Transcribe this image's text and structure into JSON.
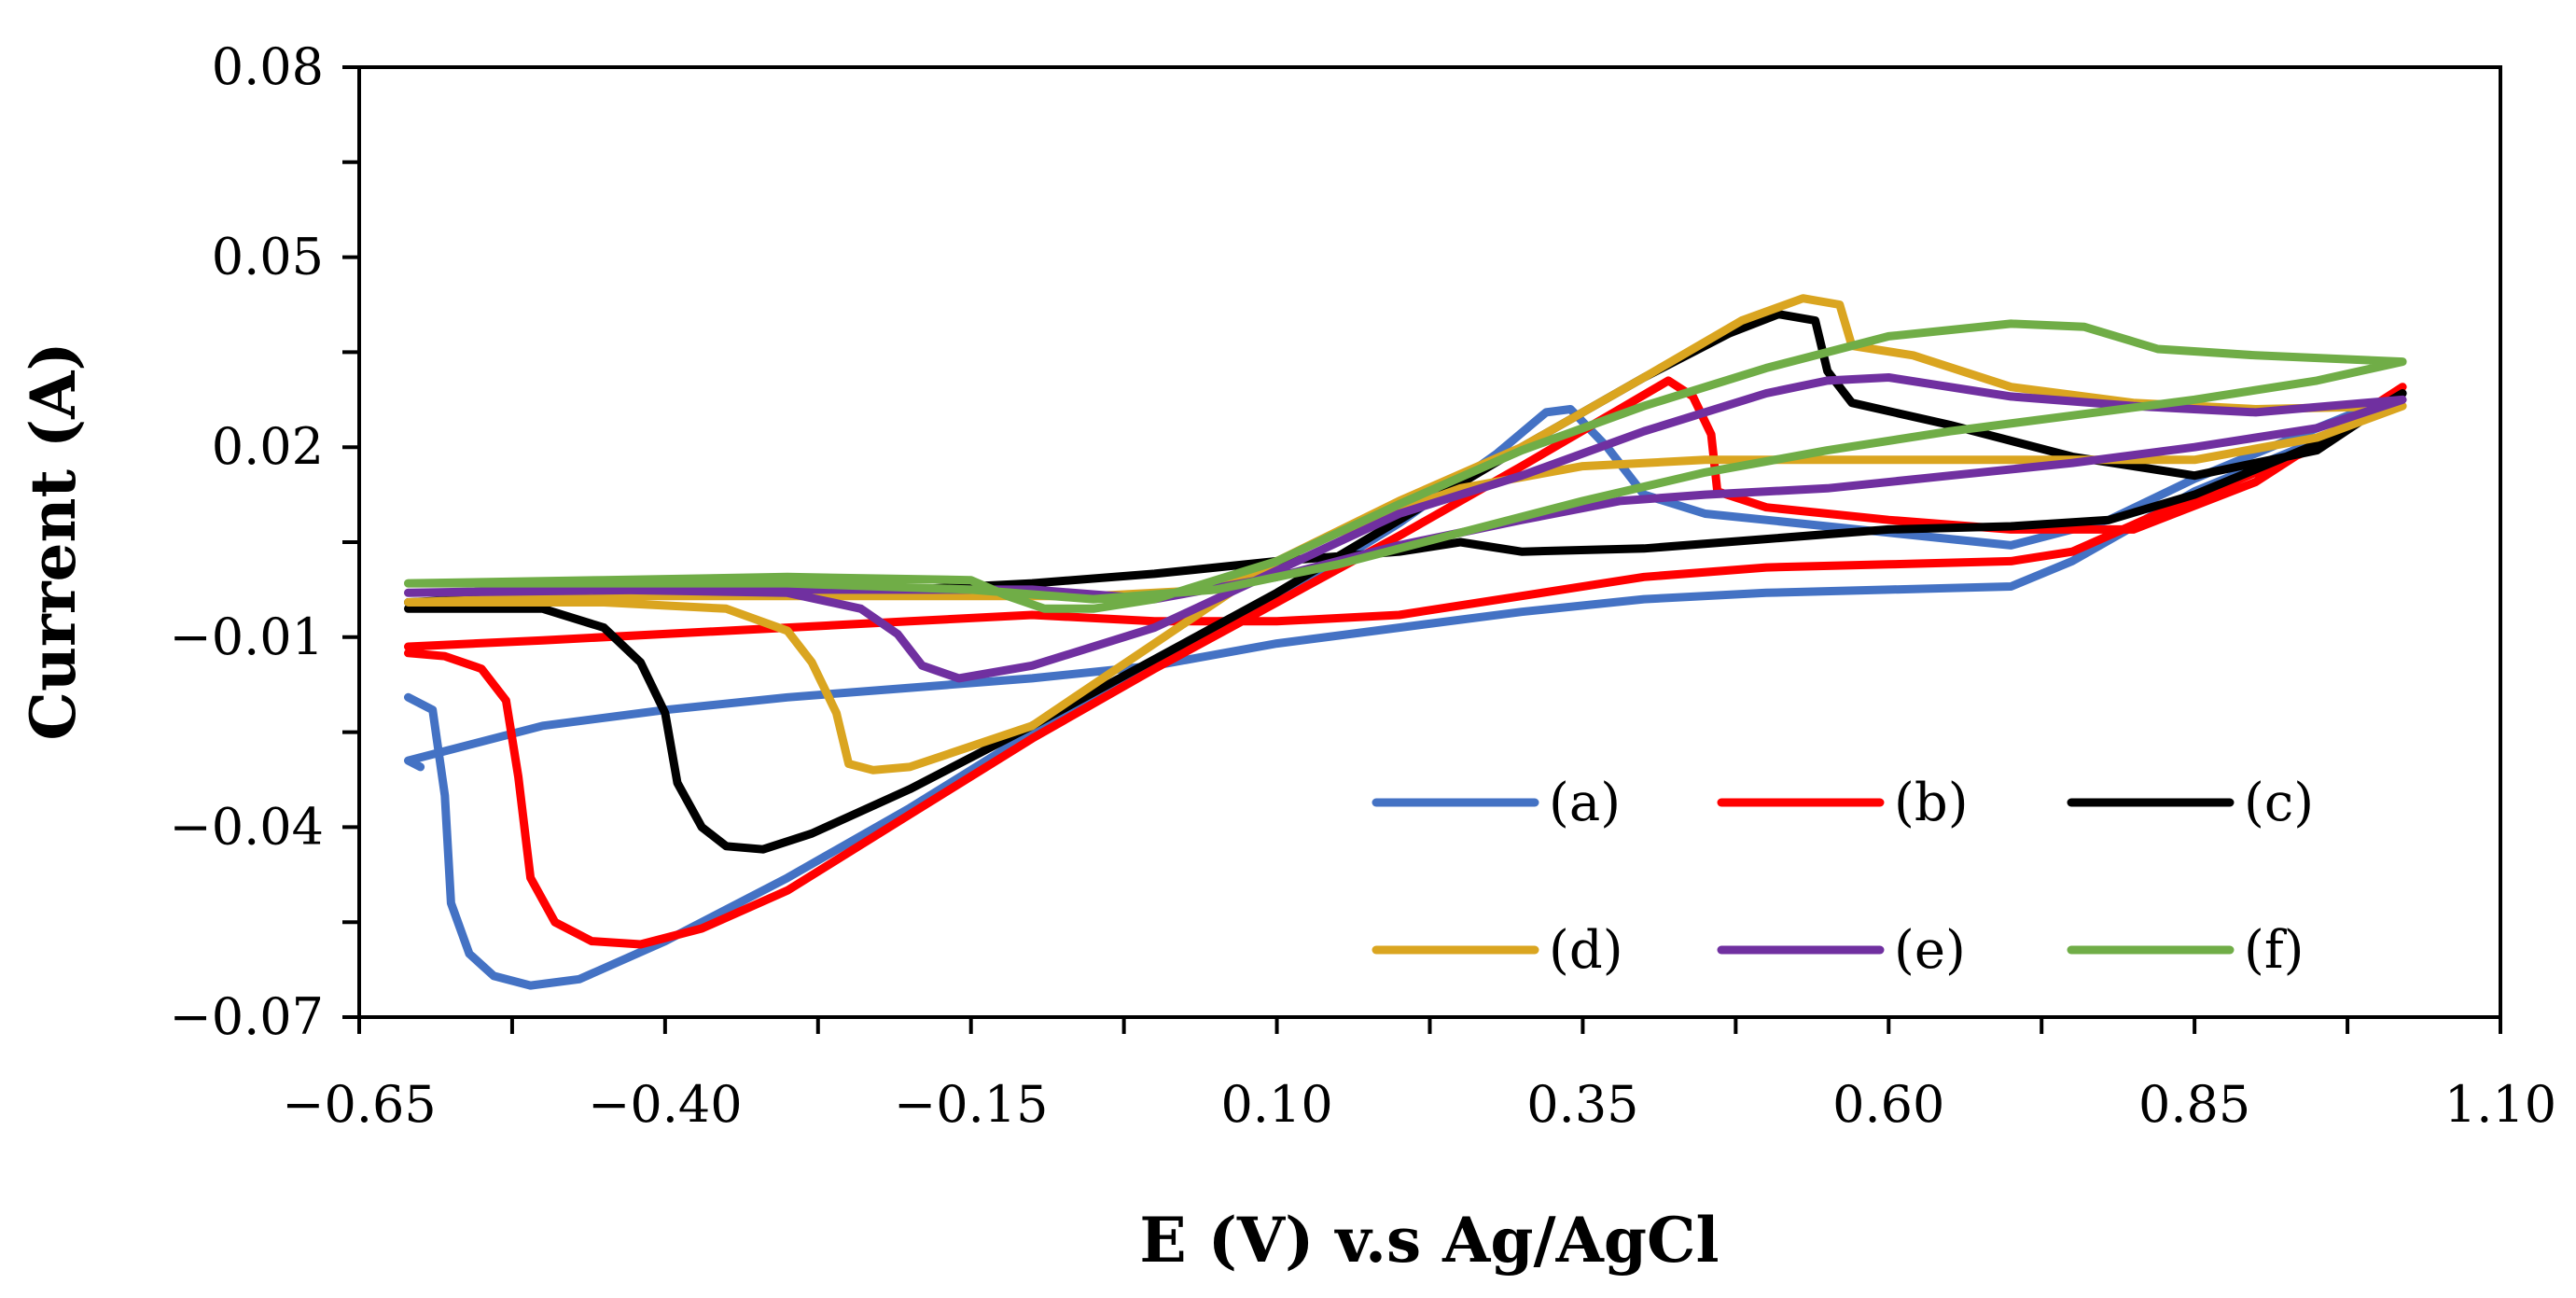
{
  "chart_data": {
    "type": "line",
    "title": "",
    "xlabel": "E (V) v.s Ag/AgCl",
    "ylabel": "Current (A)",
    "xlim": [
      -0.65,
      1.1
    ],
    "ylim": [
      -0.07,
      0.08
    ],
    "x_ticks": [
      -0.65,
      -0.4,
      -0.15,
      0.1,
      0.35,
      0.6,
      0.85,
      1.1
    ],
    "x_tick_labels": [
      "−0.65",
      "−0.40",
      "−0.15",
      "0.10",
      "0.35",
      "0.60",
      "0.85",
      "1.10"
    ],
    "y_ticks": [
      -0.07,
      -0.04,
      -0.01,
      0.02,
      0.05,
      0.08
    ],
    "y_tick_labels": [
      "−0.07",
      "−0.04",
      "−0.01",
      "0.02",
      "0.05",
      "0.08"
    ],
    "grid": false,
    "legend_position": "bottom-right",
    "series": [
      {
        "name": "(a)",
        "color": "#4472C4",
        "points": [
          [
            -0.61,
            -0.0195
          ],
          [
            -0.59,
            -0.0215
          ],
          [
            -0.58,
            -0.035
          ],
          [
            -0.575,
            -0.052
          ],
          [
            -0.56,
            -0.06
          ],
          [
            -0.54,
            -0.0635
          ],
          [
            -0.51,
            -0.065
          ],
          [
            -0.47,
            -0.064
          ],
          [
            -0.4,
            -0.058
          ],
          [
            -0.3,
            -0.048
          ],
          [
            -0.2,
            -0.037
          ],
          [
            -0.1,
            -0.025
          ],
          [
            0.0,
            -0.014
          ],
          [
            0.1,
            -0.004
          ],
          [
            0.2,
            0.008
          ],
          [
            0.28,
            0.019
          ],
          [
            0.32,
            0.0255
          ],
          [
            0.34,
            0.026
          ],
          [
            0.37,
            0.02
          ],
          [
            0.4,
            0.0125
          ],
          [
            0.45,
            0.0095
          ],
          [
            0.5,
            0.0085
          ],
          [
            0.6,
            0.0065
          ],
          [
            0.7,
            0.0045
          ],
          [
            0.78,
            0.0085
          ],
          [
            0.85,
            0.015
          ],
          [
            0.95,
            0.023
          ],
          [
            1.02,
            0.0285
          ],
          [
            0.95,
            0.021
          ],
          [
            0.85,
            0.013
          ],
          [
            0.75,
            0.002
          ],
          [
            0.7,
            -0.002
          ],
          [
            0.6,
            -0.0025
          ],
          [
            0.5,
            -0.003
          ],
          [
            0.4,
            -0.004
          ],
          [
            0.3,
            -0.006
          ],
          [
            0.2,
            -0.0085
          ],
          [
            0.1,
            -0.011
          ],
          [
            0.0,
            -0.0145
          ],
          [
            -0.1,
            -0.0165
          ],
          [
            -0.2,
            -0.018
          ],
          [
            -0.3,
            -0.0195
          ],
          [
            -0.4,
            -0.0215
          ],
          [
            -0.5,
            -0.024
          ],
          [
            -0.61,
            -0.0295
          ],
          [
            -0.6,
            -0.0305
          ]
        ]
      },
      {
        "name": "(b)",
        "color": "#FF0000",
        "points": [
          [
            -0.61,
            -0.0125
          ],
          [
            -0.58,
            -0.013
          ],
          [
            -0.55,
            -0.015
          ],
          [
            -0.53,
            -0.02
          ],
          [
            -0.52,
            -0.032
          ],
          [
            -0.51,
            -0.048
          ],
          [
            -0.49,
            -0.055
          ],
          [
            -0.46,
            -0.058
          ],
          [
            -0.42,
            -0.0585
          ],
          [
            -0.37,
            -0.056
          ],
          [
            -0.3,
            -0.05
          ],
          [
            -0.2,
            -0.038
          ],
          [
            -0.1,
            -0.026
          ],
          [
            0.0,
            -0.015
          ],
          [
            0.1,
            -0.0045
          ],
          [
            0.2,
            0.006
          ],
          [
            0.3,
            0.017
          ],
          [
            0.38,
            0.026
          ],
          [
            0.42,
            0.0305
          ],
          [
            0.44,
            0.028
          ],
          [
            0.455,
            0.022
          ],
          [
            0.46,
            0.013
          ],
          [
            0.5,
            0.0105
          ],
          [
            0.6,
            0.0085
          ],
          [
            0.7,
            0.007
          ],
          [
            0.8,
            0.007
          ],
          [
            0.9,
            0.0145
          ],
          [
            1.02,
            0.0295
          ],
          [
            0.95,
            0.02
          ],
          [
            0.85,
            0.012
          ],
          [
            0.75,
            0.0035
          ],
          [
            0.7,
            0.002
          ],
          [
            0.6,
            0.0015
          ],
          [
            0.5,
            0.001
          ],
          [
            0.4,
            -0.0005
          ],
          [
            0.3,
            -0.0035
          ],
          [
            0.2,
            -0.0065
          ],
          [
            0.1,
            -0.0075
          ],
          [
            0.0,
            -0.0075
          ],
          [
            -0.1,
            -0.0065
          ],
          [
            -0.2,
            -0.0075
          ],
          [
            -0.3,
            -0.0085
          ],
          [
            -0.4,
            -0.0095
          ],
          [
            -0.5,
            -0.0105
          ],
          [
            -0.61,
            -0.0115
          ]
        ]
      },
      {
        "name": "(c)",
        "color": "#000000",
        "points": [
          [
            -0.61,
            -0.0055
          ],
          [
            -0.5,
            -0.0055
          ],
          [
            -0.45,
            -0.0085
          ],
          [
            -0.42,
            -0.014
          ],
          [
            -0.4,
            -0.022
          ],
          [
            -0.39,
            -0.033
          ],
          [
            -0.37,
            -0.04
          ],
          [
            -0.35,
            -0.043
          ],
          [
            -0.32,
            -0.0435
          ],
          [
            -0.28,
            -0.041
          ],
          [
            -0.2,
            -0.034
          ],
          [
            -0.1,
            -0.024
          ],
          [
            0.0,
            -0.0135
          ],
          [
            0.1,
            -0.003
          ],
          [
            0.2,
            0.0085
          ],
          [
            0.3,
            0.02
          ],
          [
            0.4,
            0.031
          ],
          [
            0.47,
            0.038
          ],
          [
            0.51,
            0.041
          ],
          [
            0.54,
            0.04
          ],
          [
            0.55,
            0.032
          ],
          [
            0.57,
            0.027
          ],
          [
            0.65,
            0.0235
          ],
          [
            0.75,
            0.0185
          ],
          [
            0.85,
            0.0155
          ],
          [
            0.95,
            0.0195
          ],
          [
            1.02,
            0.0285
          ],
          [
            0.95,
            0.0205
          ],
          [
            0.85,
            0.0125
          ],
          [
            0.78,
            0.0085
          ],
          [
            0.7,
            0.0075
          ],
          [
            0.6,
            0.007
          ],
          [
            0.5,
            0.0055
          ],
          [
            0.4,
            0.004
          ],
          [
            0.3,
            0.0035
          ],
          [
            0.25,
            0.005
          ],
          [
            0.2,
            0.0035
          ],
          [
            0.1,
            0.002
          ],
          [
            0.0,
            0.0
          ],
          [
            -0.1,
            -0.0015
          ],
          [
            -0.2,
            -0.0025
          ],
          [
            -0.4,
            -0.0025
          ],
          [
            -0.61,
            -0.0045
          ]
        ]
      },
      {
        "name": "(d)",
        "color": "#DAA520",
        "points": [
          [
            -0.61,
            -0.0045
          ],
          [
            -0.45,
            -0.0045
          ],
          [
            -0.35,
            -0.0055
          ],
          [
            -0.3,
            -0.009
          ],
          [
            -0.28,
            -0.014
          ],
          [
            -0.26,
            -0.022
          ],
          [
            -0.25,
            -0.03
          ],
          [
            -0.23,
            -0.031
          ],
          [
            -0.2,
            -0.0305
          ],
          [
            -0.1,
            -0.024
          ],
          [
            0.0,
            -0.011
          ],
          [
            0.1,
            0.002
          ],
          [
            0.2,
            0.0115
          ],
          [
            0.3,
            0.02
          ],
          [
            0.4,
            0.031
          ],
          [
            0.48,
            0.04
          ],
          [
            0.53,
            0.0435
          ],
          [
            0.56,
            0.0425
          ],
          [
            0.57,
            0.036
          ],
          [
            0.62,
            0.0345
          ],
          [
            0.7,
            0.0295
          ],
          [
            0.8,
            0.027
          ],
          [
            0.9,
            0.026
          ],
          [
            1.02,
            0.0265
          ],
          [
            0.95,
            0.0215
          ],
          [
            0.85,
            0.018
          ],
          [
            0.75,
            0.018
          ],
          [
            0.65,
            0.018
          ],
          [
            0.55,
            0.018
          ],
          [
            0.45,
            0.018
          ],
          [
            0.35,
            0.017
          ],
          [
            0.25,
            0.0135
          ],
          [
            0.15,
            0.0065
          ],
          [
            0.05,
            -0.0025
          ],
          [
            -0.05,
            -0.0035
          ],
          [
            -0.15,
            -0.0035
          ],
          [
            -0.3,
            -0.0035
          ],
          [
            -0.45,
            -0.0035
          ],
          [
            -0.61,
            -0.0045
          ]
        ]
      },
      {
        "name": "(e)",
        "color": "#7030A0",
        "points": [
          [
            -0.61,
            -0.003
          ],
          [
            -0.45,
            -0.0025
          ],
          [
            -0.3,
            -0.003
          ],
          [
            -0.24,
            -0.0055
          ],
          [
            -0.21,
            -0.0095
          ],
          [
            -0.19,
            -0.0145
          ],
          [
            -0.16,
            -0.0165
          ],
          [
            -0.1,
            -0.0145
          ],
          [
            0.0,
            -0.0085
          ],
          [
            0.1,
            0.0005
          ],
          [
            0.2,
            0.0095
          ],
          [
            0.3,
            0.0155
          ],
          [
            0.4,
            0.0225
          ],
          [
            0.5,
            0.0285
          ],
          [
            0.55,
            0.0305
          ],
          [
            0.6,
            0.031
          ],
          [
            0.7,
            0.028
          ],
          [
            0.8,
            0.0265
          ],
          [
            0.9,
            0.0255
          ],
          [
            1.02,
            0.0275
          ],
          [
            0.95,
            0.023
          ],
          [
            0.85,
            0.02
          ],
          [
            0.75,
            0.0175
          ],
          [
            0.65,
            0.0155
          ],
          [
            0.55,
            0.0135
          ],
          [
            0.45,
            0.0125
          ],
          [
            0.38,
            0.0115
          ],
          [
            0.3,
            0.0085
          ],
          [
            0.2,
            0.0045
          ],
          [
            0.1,
            -0.0005
          ],
          [
            0.0,
            -0.004
          ],
          [
            -0.1,
            -0.0025
          ],
          [
            -0.2,
            -0.0025
          ],
          [
            -0.4,
            -0.0025
          ],
          [
            -0.61,
            -0.003
          ]
        ]
      },
      {
        "name": "(f)",
        "color": "#70AD47",
        "points": [
          [
            -0.61,
            -0.0015
          ],
          [
            -0.45,
            -0.001
          ],
          [
            -0.3,
            -0.0005
          ],
          [
            -0.15,
            -0.001
          ],
          [
            -0.12,
            -0.0035
          ],
          [
            -0.09,
            -0.0055
          ],
          [
            -0.05,
            -0.0055
          ],
          [
            0.0,
            -0.004
          ],
          [
            0.1,
            0.002
          ],
          [
            0.2,
            0.011
          ],
          [
            0.3,
            0.0195
          ],
          [
            0.4,
            0.0265
          ],
          [
            0.5,
            0.0325
          ],
          [
            0.6,
            0.0375
          ],
          [
            0.7,
            0.0395
          ],
          [
            0.76,
            0.039
          ],
          [
            0.82,
            0.0355
          ],
          [
            0.9,
            0.0345
          ],
          [
            1.02,
            0.0335
          ],
          [
            0.95,
            0.0305
          ],
          [
            0.85,
            0.0275
          ],
          [
            0.75,
            0.025
          ],
          [
            0.65,
            0.0225
          ],
          [
            0.55,
            0.0195
          ],
          [
            0.45,
            0.016
          ],
          [
            0.35,
            0.0115
          ],
          [
            0.25,
            0.0065
          ],
          [
            0.15,
            0.0015
          ],
          [
            0.05,
            -0.0025
          ],
          [
            -0.05,
            -0.004
          ],
          [
            -0.15,
            -0.0025
          ],
          [
            -0.3,
            -0.0015
          ],
          [
            -0.45,
            -0.0015
          ],
          [
            -0.61,
            -0.0015
          ]
        ]
      }
    ]
  }
}
